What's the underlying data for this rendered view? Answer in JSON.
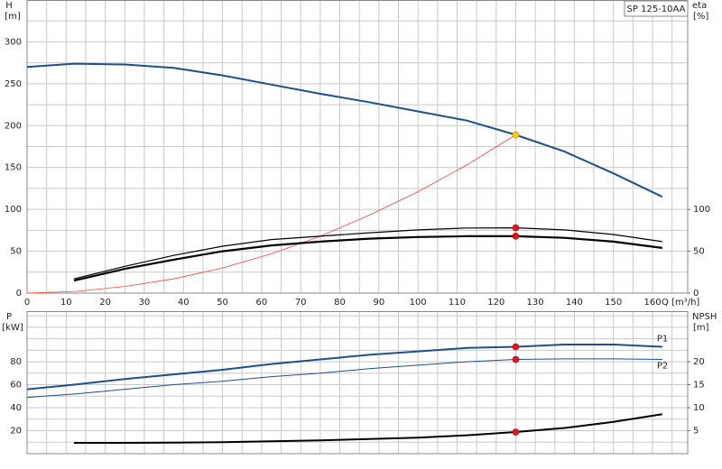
{
  "chart_data": [
    {
      "type": "line",
      "label": "SP 125-10AA",
      "ylabel": "H",
      "yunit": "[m]",
      "y2label": "eta",
      "y2unit": "[%]",
      "xlabel": "Q [m³/h]",
      "xlim": [
        0,
        169
      ],
      "xticks": [
        0,
        10,
        20,
        30,
        40,
        50,
        60,
        70,
        80,
        90,
        100,
        110,
        120,
        130,
        140,
        150,
        160
      ],
      "xgrid": [
        5,
        15,
        25,
        35,
        45,
        55,
        65,
        75,
        85,
        95,
        105,
        115,
        125,
        135,
        145,
        155,
        165
      ],
      "ylim": [
        0,
        350
      ],
      "yticks": [
        0,
        50,
        100,
        150,
        200,
        250,
        300
      ],
      "ygrid": [
        25,
        75,
        125,
        175,
        225,
        275,
        325
      ],
      "y2lim": [
        0,
        350
      ],
      "y2ticks": [
        0,
        50,
        100
      ],
      "series": [
        {
          "color": "#1f4e8c",
          "width": 2,
          "x": [
            0,
            12,
            25,
            37.5,
            50,
            62.5,
            75,
            87.5,
            100,
            112.5,
            125,
            137.5,
            150,
            162.5
          ],
          "values": [
            270,
            274,
            273,
            269,
            260,
            249,
            238,
            228,
            217,
            206,
            189,
            169,
            143,
            115
          ]
        },
        {
          "color": "#ff4040",
          "width": 0.8,
          "x": [
            0,
            12.5,
            25,
            37.5,
            50,
            62.5,
            75,
            87.5,
            100,
            112.5,
            125
          ],
          "values": [
            0,
            2,
            8,
            17,
            30,
            47,
            68,
            93,
            121,
            153,
            189
          ]
        },
        {
          "color": "#000000",
          "width": 1.2,
          "axis": "y2",
          "x": [
            12,
            25,
            37.5,
            50,
            62.5,
            75,
            87.5,
            100,
            112.5,
            125,
            137.5,
            150,
            162.5
          ],
          "values": [
            17,
            32,
            45,
            56,
            64,
            68,
            72,
            75.5,
            77.7,
            78,
            75.5,
            70,
            61.5
          ]
        },
        {
          "color": "#000000",
          "width": 2.2,
          "axis": "y2",
          "x": [
            12,
            25,
            37.5,
            50,
            62.5,
            75,
            87.5,
            100,
            112.5,
            125,
            137.5,
            150,
            162.5
          ],
          "values": [
            15,
            29,
            40,
            50,
            57,
            61.5,
            65,
            67,
            68,
            68,
            66,
            61.5,
            54
          ]
        },
        {
          "marker": true,
          "color": "#ffcc00",
          "x": [
            125
          ],
          "values": [
            189
          ]
        },
        {
          "marker": true,
          "color": "#e8141c",
          "axis": "y2",
          "x": [
            125
          ],
          "values": [
            78
          ]
        },
        {
          "marker": true,
          "color": "#e8141c",
          "axis": "y2",
          "x": [
            125
          ],
          "values": [
            68
          ]
        }
      ]
    },
    {
      "type": "line",
      "ylabel": "P",
      "yunit": "[kW]",
      "y2label": "NPSH",
      "y2unit": "[m]",
      "xlim": [
        0,
        169
      ],
      "xgrid": [
        0,
        5,
        10,
        15,
        20,
        25,
        30,
        35,
        40,
        45,
        50,
        55,
        60,
        65,
        70,
        75,
        80,
        85,
        90,
        95,
        100,
        105,
        110,
        115,
        120,
        125,
        130,
        135,
        140,
        145,
        150,
        155,
        160,
        165
      ],
      "ylim": [
        0,
        124
      ],
      "yticks": [
        20,
        40,
        60,
        80
      ],
      "ygrid": [
        10,
        30,
        50,
        70,
        90,
        100,
        110,
        120
      ],
      "y2lim": [
        0,
        31
      ],
      "y2ticks": [
        5,
        10,
        15,
        20
      ],
      "series": [
        {
          "name": "P1",
          "color": "#1f4e8c",
          "width": 2,
          "x": [
            0,
            12,
            25,
            37.5,
            50,
            62.5,
            75,
            87.5,
            100,
            112.5,
            125,
            137.5,
            150,
            162.5
          ],
          "values": [
            56,
            60,
            65,
            69,
            73,
            78,
            82,
            86,
            89,
            92,
            93,
            95,
            95,
            93
          ]
        },
        {
          "name": "P2",
          "color": "#1f4e8c",
          "width": 1,
          "x": [
            0,
            12.5,
            25,
            37.5,
            50,
            62.5,
            75,
            87.5,
            100,
            112.5,
            125,
            137.5,
            150,
            162.5
          ],
          "values": [
            49,
            52,
            56,
            60,
            63,
            67,
            70,
            74,
            77,
            80,
            82,
            82.5,
            82.5,
            82
          ]
        },
        {
          "color": "#000000",
          "width": 2,
          "axis": "y2",
          "x": [
            12,
            25,
            37.5,
            50,
            62.5,
            75,
            87.5,
            100,
            112.5,
            125,
            137.5,
            150,
            162.5
          ],
          "values": [
            2.35,
            2.35,
            2.4,
            2.5,
            2.7,
            2.9,
            3.2,
            3.5,
            4.0,
            4.7,
            5.6,
            6.9,
            8.6
          ]
        },
        {
          "marker": true,
          "color": "#e8141c",
          "x": [
            125
          ],
          "values": [
            93
          ]
        },
        {
          "marker": true,
          "color": "#e8141c",
          "x": [
            125
          ],
          "values": [
            82
          ]
        },
        {
          "marker": true,
          "color": "#e8141c",
          "axis": "y2",
          "x": [
            125
          ],
          "values": [
            4.7
          ]
        }
      ]
    }
  ]
}
